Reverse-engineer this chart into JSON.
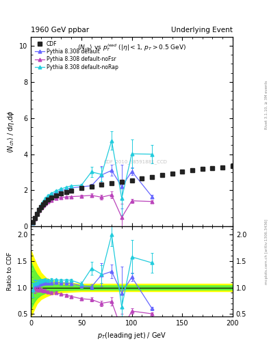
{
  "title_left": "1960 GeV ppbar",
  "title_right": "Underlying Event",
  "plot_title": "$\\langle N_{ch}\\rangle$ vs $p_T^{lead}$ ($|\\eta|<1$, $p_T>0.5$ GeV)",
  "xlabel": "$p_T$(leading jet) / GeV",
  "ylabel_main": "$\\langle N_{ch}\\rangle$ / d$\\eta$,d$\\phi$",
  "ylabel_ratio": "Ratio to CDF",
  "right_label_main": "Rivet 3.1.10, ≥ 3M events",
  "right_label_ratio": "mcplots.cern.ch [arXiv:1306.3436]",
  "watermark": "CDF_2010_S8591881_CCD",
  "cdf_x": [
    2,
    4,
    6,
    8,
    10,
    12,
    14,
    17,
    20,
    25,
    30,
    35,
    40,
    50,
    60,
    70,
    80,
    90,
    100,
    110,
    120,
    130,
    140,
    150,
    160,
    170,
    180,
    190,
    200
  ],
  "cdf_y": [
    0.22,
    0.45,
    0.7,
    0.9,
    1.07,
    1.22,
    1.35,
    1.5,
    1.6,
    1.72,
    1.83,
    1.9,
    1.98,
    2.13,
    2.22,
    2.3,
    2.38,
    2.45,
    2.55,
    2.65,
    2.73,
    2.83,
    2.92,
    3.02,
    3.1,
    3.17,
    3.22,
    3.28,
    3.35
  ],
  "cdf_yerr": [
    0.04,
    0.05,
    0.05,
    0.05,
    0.05,
    0.05,
    0.05,
    0.05,
    0.05,
    0.05,
    0.05,
    0.05,
    0.05,
    0.05,
    0.05,
    0.05,
    0.05,
    0.05,
    0.08,
    0.08,
    0.09,
    0.09,
    0.1,
    0.1,
    0.1,
    0.1,
    0.1,
    0.1,
    0.1
  ],
  "cdf_color": "#222222",
  "py_default_x": [
    2,
    4,
    6,
    8,
    10,
    12,
    14,
    17,
    20,
    25,
    30,
    35,
    40,
    50,
    60,
    70,
    80,
    90,
    100,
    120
  ],
  "py_default_y": [
    0.21,
    0.47,
    0.73,
    0.95,
    1.15,
    1.32,
    1.47,
    1.62,
    1.73,
    1.88,
    1.98,
    2.06,
    2.13,
    2.2,
    2.25,
    2.85,
    3.1,
    2.2,
    3.05,
    1.65
  ],
  "py_default_yerr": [
    0.03,
    0.04,
    0.04,
    0.04,
    0.04,
    0.04,
    0.04,
    0.04,
    0.04,
    0.04,
    0.04,
    0.04,
    0.04,
    0.08,
    0.1,
    0.5,
    0.3,
    1.2,
    0.2,
    0.1
  ],
  "py_default_color": "#6666ff",
  "py_noFSR_x": [
    2,
    4,
    6,
    8,
    10,
    12,
    14,
    17,
    20,
    25,
    30,
    35,
    40,
    50,
    60,
    70,
    80,
    90,
    100,
    120
  ],
  "py_noFSR_y": [
    0.21,
    0.44,
    0.68,
    0.87,
    1.02,
    1.15,
    1.27,
    1.37,
    1.45,
    1.55,
    1.6,
    1.63,
    1.65,
    1.68,
    1.72,
    1.62,
    1.75,
    0.5,
    1.42,
    1.38
  ],
  "py_noFSR_yerr": [
    0.03,
    0.04,
    0.04,
    0.04,
    0.04,
    0.04,
    0.04,
    0.04,
    0.04,
    0.04,
    0.04,
    0.04,
    0.04,
    0.06,
    0.09,
    0.12,
    0.18,
    0.75,
    0.12,
    0.08
  ],
  "py_noFSR_color": "#bb44bb",
  "py_noRap_x": [
    2,
    4,
    6,
    8,
    10,
    12,
    14,
    17,
    20,
    25,
    30,
    35,
    40,
    50,
    60,
    70,
    80,
    90,
    100,
    120
  ],
  "py_noRap_y": [
    0.21,
    0.48,
    0.76,
    1.0,
    1.2,
    1.38,
    1.55,
    1.7,
    1.83,
    1.97,
    2.08,
    2.17,
    2.25,
    2.28,
    3.02,
    2.88,
    4.75,
    1.55,
    4.02,
    4.0
  ],
  "py_noRap_yerr": [
    0.03,
    0.04,
    0.04,
    0.04,
    0.04,
    0.04,
    0.04,
    0.04,
    0.04,
    0.04,
    0.04,
    0.04,
    0.04,
    0.09,
    0.28,
    0.38,
    0.5,
    0.95,
    0.8,
    0.5
  ],
  "py_noRap_color": "#22ccdd",
  "ylim_main": [
    0,
    10.5
  ],
  "ylim_ratio": [
    0.45,
    2.15
  ],
  "xlim": [
    0,
    200
  ],
  "yticks_main": [
    0,
    2,
    4,
    6,
    8,
    10
  ],
  "yticks_ratio": [
    0.5,
    1.0,
    1.5,
    2.0
  ],
  "band_yellow_x": [
    0,
    3,
    6,
    10,
    15,
    20,
    30,
    50,
    200
  ],
  "band_yellow_lo": [
    0.45,
    0.58,
    0.7,
    0.78,
    0.83,
    0.87,
    0.91,
    0.93,
    0.93
  ],
  "band_yellow_hi": [
    1.7,
    1.55,
    1.42,
    1.28,
    1.18,
    1.14,
    1.1,
    1.07,
    1.07
  ],
  "band_green_x": [
    0,
    3,
    6,
    10,
    15,
    20,
    30,
    50,
    200
  ],
  "band_green_lo": [
    0.6,
    0.72,
    0.8,
    0.86,
    0.9,
    0.92,
    0.95,
    0.96,
    0.96
  ],
  "band_green_hi": [
    1.48,
    1.35,
    1.25,
    1.16,
    1.11,
    1.08,
    1.05,
    1.04,
    1.04
  ]
}
